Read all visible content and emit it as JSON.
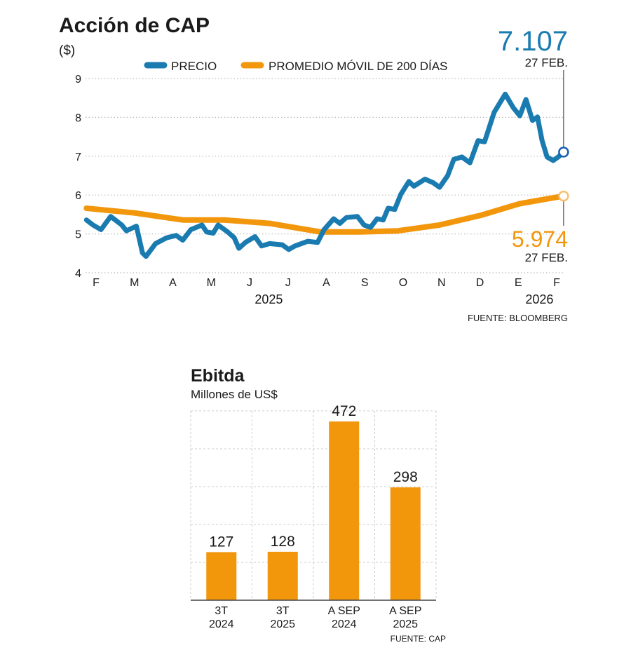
{
  "colors": {
    "price": "#1a7bb0",
    "ma": "#f2960c",
    "grid": "#bbbbbb",
    "text": "#1a1a1a",
    "end_marker_price": "#1a5fb0"
  },
  "chart_data": [
    {
      "type": "line",
      "title": "Acción de CAP",
      "subtitle": "($)",
      "ylabel": "($)",
      "xlabel": "",
      "ylim": [
        4,
        9
      ],
      "yticks": [
        4,
        5,
        6,
        7,
        8,
        9
      ],
      "grid": true,
      "legend_position": "top",
      "x_unit": "months since Feb 2025",
      "xlim": [
        -0.3,
        12.3
      ],
      "xticks": [
        {
          "x": 0,
          "label": "F"
        },
        {
          "x": 1,
          "label": "M"
        },
        {
          "x": 2,
          "label": "A"
        },
        {
          "x": 3,
          "label": "M"
        },
        {
          "x": 4,
          "label": "J"
        },
        {
          "x": 5,
          "label": "J"
        },
        {
          "x": 6,
          "label": "A"
        },
        {
          "x": 7,
          "label": "S"
        },
        {
          "x": 8,
          "label": "O"
        },
        {
          "x": 9,
          "label": "N"
        },
        {
          "x": 10,
          "label": "D"
        },
        {
          "x": 11,
          "label": "E"
        },
        {
          "x": 12,
          "label": "F"
        }
      ],
      "year_labels": [
        {
          "x": 4.5,
          "label": "2025"
        },
        {
          "x": 11.55,
          "label": "2026"
        }
      ],
      "series": [
        {
          "name": "PRECIO",
          "color": "#1a7bb0",
          "x": [
            -0.25,
            -0.08,
            0.13,
            0.38,
            0.67,
            0.79,
            1.05,
            1.21,
            1.3,
            1.55,
            1.84,
            2.09,
            2.26,
            2.47,
            2.76,
            2.88,
            3.05,
            3.18,
            3.43,
            3.6,
            3.72,
            3.89,
            4.14,
            4.31,
            4.52,
            4.85,
            5.02,
            5.18,
            5.52,
            5.77,
            5.94,
            6.19,
            6.35,
            6.52,
            6.81,
            6.98,
            7.15,
            7.32,
            7.48,
            7.61,
            7.78,
            7.94,
            8.15,
            8.28,
            8.57,
            8.78,
            8.95,
            9.16,
            9.32,
            9.53,
            9.74,
            9.95,
            10.12,
            10.37,
            10.66,
            10.87,
            11.04,
            11.2,
            11.37,
            11.5,
            11.62,
            11.75,
            11.91,
            12.04,
            12.18
          ],
          "y": [
            5.36,
            5.23,
            5.11,
            5.45,
            5.23,
            5.08,
            5.2,
            4.51,
            4.42,
            4.75,
            4.9,
            4.96,
            4.84,
            5.11,
            5.23,
            5.05,
            5.02,
            5.23,
            5.05,
            4.9,
            4.63,
            4.78,
            4.93,
            4.69,
            4.75,
            4.72,
            4.6,
            4.69,
            4.81,
            4.78,
            5.11,
            5.39,
            5.27,
            5.42,
            5.45,
            5.23,
            5.17,
            5.39,
            5.36,
            5.66,
            5.63,
            6.02,
            6.35,
            6.23,
            6.41,
            6.32,
            6.2,
            6.5,
            6.92,
            6.98,
            6.83,
            7.4,
            7.37,
            8.13,
            8.6,
            8.25,
            8.04,
            8.46,
            7.92,
            8.01,
            7.4,
            6.98,
            6.89,
            6.98,
            7.107
          ]
        },
        {
          "name": "PROMEDIO MÓVIL DE 200 DÍAS",
          "color": "#f2960c",
          "x": [
            -0.25,
            1.0,
            2.26,
            3.34,
            4.52,
            5.85,
            6.86,
            7.86,
            8.95,
            10.03,
            11.04,
            12.18
          ],
          "y": [
            5.66,
            5.54,
            5.36,
            5.36,
            5.27,
            5.05,
            5.05,
            5.08,
            5.23,
            5.48,
            5.78,
            5.974
          ]
        }
      ],
      "annotations": [
        {
          "series": "PRECIO",
          "value": "7.107",
          "date": "27 FEB."
        },
        {
          "series": "PROMEDIO MÓVIL DE 200 DÍAS",
          "value": "5.974",
          "date": "27 FEB."
        }
      ],
      "source": "FUENTE: BLOOMBERG"
    },
    {
      "type": "bar",
      "title": "Ebitda",
      "subtitle": "Millones de US$",
      "ylabel": "Millones de US$",
      "xlabel": "",
      "ylim": [
        0,
        500
      ],
      "grid": true,
      "categories": [
        [
          "3T",
          "2024"
        ],
        [
          "3T",
          "2025"
        ],
        [
          "A SEP",
          "2024"
        ],
        [
          "A SEP",
          "2025"
        ]
      ],
      "values": [
        127,
        128,
        472,
        298
      ],
      "value_labels": [
        "127",
        "128",
        "472",
        "298"
      ],
      "color": "#f2960c",
      "source": "FUENTE: CAP"
    }
  ]
}
